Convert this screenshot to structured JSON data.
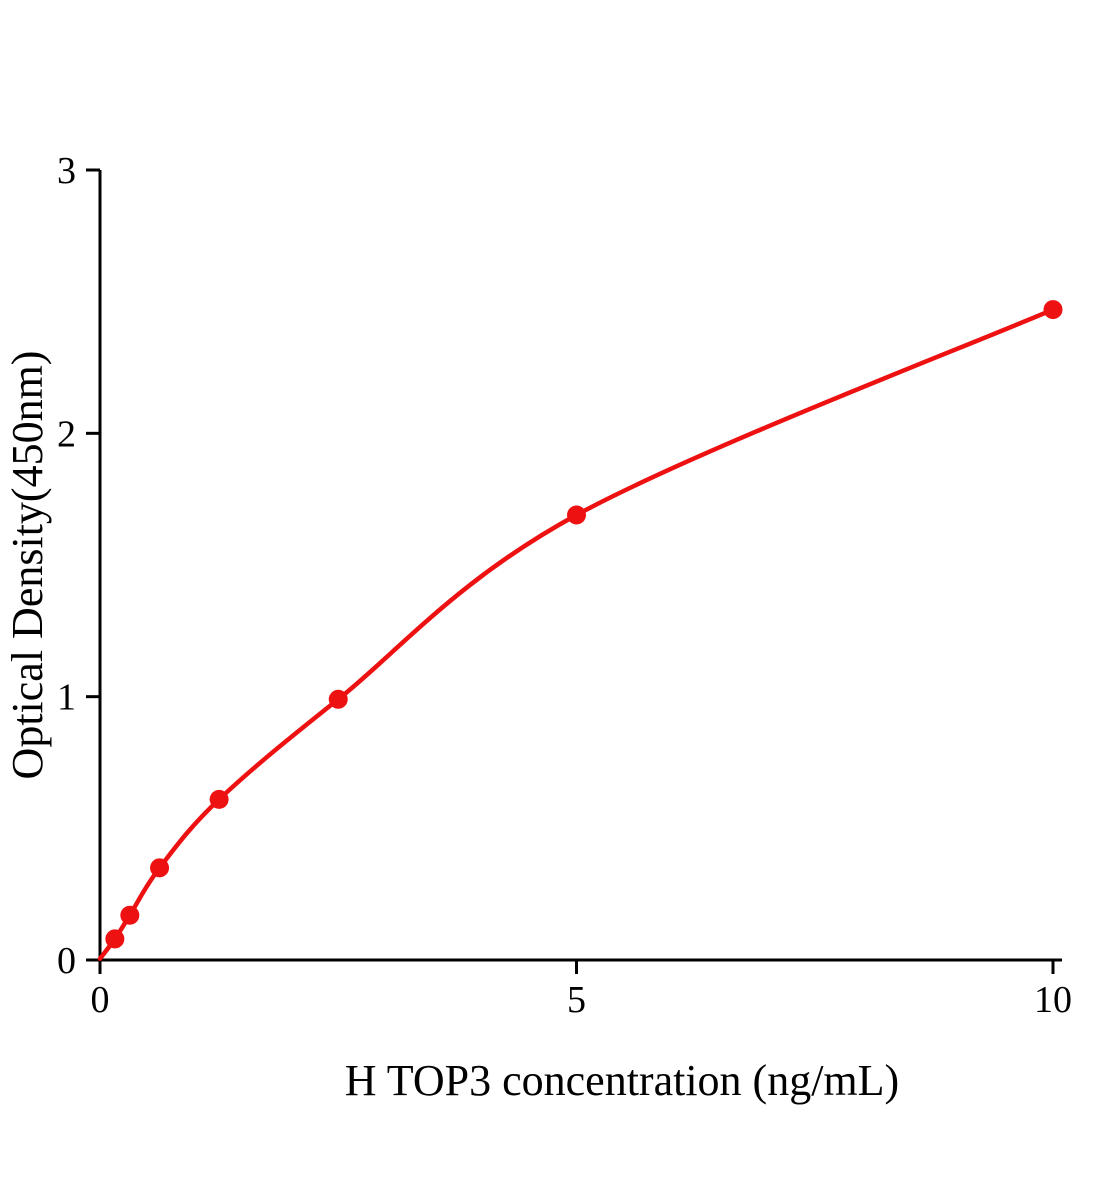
{
  "chart_data": {
    "type": "line",
    "title": "",
    "xlabel": "H TOP3 concentration (ng/mL)",
    "ylabel": "Optical Density(450nm)",
    "x": [
      0.156,
      0.313,
      0.625,
      1.25,
      2.5,
      5,
      10
    ],
    "y": [
      0.08,
      0.17,
      0.35,
      0.61,
      0.99,
      1.69,
      2.47
    ],
    "xlim": [
      0,
      10.1
    ],
    "ylim": [
      0,
      3
    ],
    "xticks": [
      0,
      5,
      10
    ],
    "yticks": [
      0,
      1,
      2,
      3
    ],
    "grid": false,
    "legend_position": "none",
    "line_color": "#ee1111",
    "marker_color": "#ee1111",
    "axis_color": "#000000",
    "curve_origin": {
      "x": 0,
      "y": 0.005
    }
  }
}
